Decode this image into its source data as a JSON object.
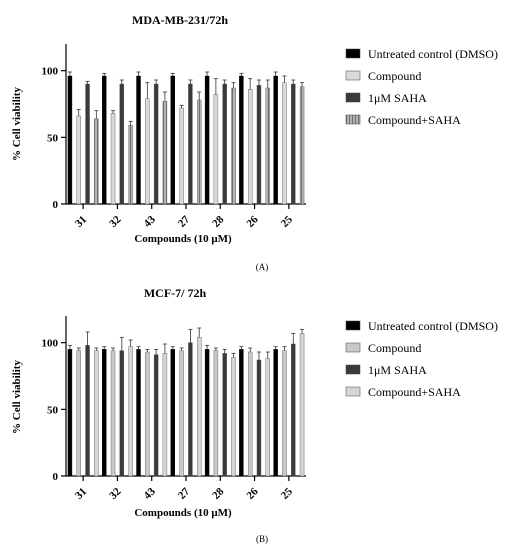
{
  "chart_data": [
    {
      "type": "bar",
      "title": "MDA-MB-231/72h",
      "panel_label": "(A)",
      "xlabel": "Compounds (10 μM)",
      "ylabel": "% Cell viability",
      "ylim": [
        0,
        120
      ],
      "yticks": [
        0,
        50,
        100
      ],
      "categories": [
        "31",
        "32",
        "43",
        "27",
        "28",
        "26",
        "25"
      ],
      "legend_position": "right",
      "series": [
        {
          "name": "Untreated control (DMSO)",
          "color": "#000000",
          "pattern": "solid",
          "values": [
            96,
            96,
            96,
            96,
            96,
            96,
            96
          ],
          "errors": [
            3,
            2,
            3,
            2,
            3,
            2,
            3
          ]
        },
        {
          "name": "Compound",
          "color": "#d9d9d9",
          "pattern": "solid",
          "values": [
            66,
            68,
            79,
            72,
            82,
            86,
            91
          ],
          "errors": [
            5,
            2,
            12,
            2,
            12,
            8,
            5
          ]
        },
        {
          "name": "1μM SAHA",
          "color": "#3a3a3a",
          "pattern": "solid",
          "values": [
            90,
            90,
            90,
            90,
            90,
            89,
            90
          ],
          "errors": [
            2,
            3,
            3,
            3,
            3,
            4,
            3
          ]
        },
        {
          "name": "Compound+SAHA",
          "color": "#9a9a9a",
          "pattern": "stripes",
          "values": [
            64,
            59,
            77,
            78,
            87,
            87,
            88
          ],
          "errors": [
            6,
            3,
            7,
            6,
            4,
            6,
            3
          ]
        }
      ]
    },
    {
      "type": "bar",
      "title": "MCF-7/ 72h",
      "panel_label": "(B)",
      "xlabel": "Compounds (10 μM)",
      "ylabel": "% Cell viability",
      "ylim": [
        0,
        120
      ],
      "yticks": [
        0,
        50,
        100
      ],
      "categories": [
        "31",
        "32",
        "43",
        "27",
        "28",
        "26",
        "25"
      ],
      "legend_position": "right",
      "series": [
        {
          "name": "Untreated control (DMSO)",
          "color": "#000000",
          "pattern": "solid",
          "values": [
            95,
            95,
            95,
            95,
            95,
            95,
            95
          ],
          "errors": [
            3,
            2,
            2,
            2,
            3,
            2,
            2
          ]
        },
        {
          "name": "Compound",
          "color": "#c8c8c8",
          "pattern": "solid",
          "values": [
            94,
            94,
            93,
            94,
            94,
            93,
            94
          ],
          "errors": [
            2,
            2,
            2,
            2,
            2,
            3,
            3
          ]
        },
        {
          "name": "1μM SAHA",
          "color": "#3a3a3a",
          "pattern": "solid",
          "values": [
            98,
            94,
            91,
            100,
            92,
            87,
            99
          ],
          "errors": [
            10,
            10,
            4,
            10,
            3,
            6,
            8
          ]
        },
        {
          "name": "Compound+SAHA",
          "color": "#d6d6d6",
          "pattern": "solid",
          "values": [
            94,
            97,
            92,
            104,
            89,
            88,
            107
          ],
          "errors": [
            2,
            5,
            7,
            7,
            3,
            5,
            3
          ]
        }
      ]
    }
  ]
}
